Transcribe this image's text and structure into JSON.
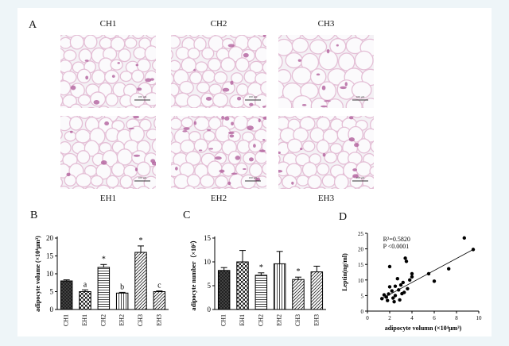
{
  "panel_letters": [
    "A",
    "B",
    "C",
    "D"
  ],
  "micrographs": {
    "top_labels": [
      "CH1",
      "CH2",
      "CH3"
    ],
    "bottom_labels": [
      "EH1",
      "EH2",
      "EH3"
    ],
    "scale_bar_text": "100 μm",
    "stain_colors": {
      "membrane": "#e4bfd6",
      "nucleus": "#b1609c",
      "background": "#f4f1f5",
      "cell": "#fbfafc"
    }
  },
  "chart_data": [
    {
      "type": "bar",
      "panel": "B",
      "categories": [
        "CH1",
        "EH1",
        "CH2",
        "EH2",
        "CH3",
        "EH3"
      ],
      "values": [
        8.0,
        5.0,
        11.8,
        4.6,
        16.0,
        5.0
      ],
      "errors": [
        0.3,
        0.5,
        0.8,
        0.2,
        1.8,
        0.2
      ],
      "annotations": [
        "",
        "a",
        "*",
        "b",
        "*",
        "c"
      ],
      "ylabel": "adipocyte volume (×10⁴μm³)",
      "ylim": [
        0,
        20
      ],
      "yticks": [
        0,
        5,
        10,
        15,
        20
      ],
      "patterns": [
        "dark-crosshatch",
        "checker",
        "horizontal",
        "vertical",
        "diagonal",
        "diagonal"
      ],
      "grid": false
    },
    {
      "type": "bar",
      "panel": "C",
      "categories": [
        "CH1",
        "EH1",
        "CH2",
        "EH2",
        "CH3",
        "EH3"
      ],
      "values": [
        8.2,
        10.0,
        7.2,
        9.6,
        6.3,
        7.9
      ],
      "errors": [
        0.6,
        2.4,
        0.5,
        2.6,
        0.5,
        1.2
      ],
      "annotations": [
        "",
        "",
        "*",
        "",
        "*",
        ""
      ],
      "ylabel": "adipocyte number（×10²）",
      "ylim": [
        0,
        15
      ],
      "yticks": [
        0,
        5,
        10,
        15
      ],
      "patterns": [
        "dark-crosshatch",
        "checker",
        "horizontal",
        "vertical",
        "diagonal",
        "diagonal"
      ],
      "grid": false
    },
    {
      "type": "scatter",
      "panel": "D",
      "xlabel": "adipocyte volumn (×10⁴μm³)",
      "ylabel": "Leptin(ng/ml)",
      "xlim": [
        0,
        10
      ],
      "ylim": [
        0,
        25
      ],
      "xticks": [
        0,
        2,
        4,
        6,
        8,
        10
      ],
      "yticks": [
        0,
        5,
        10,
        15,
        20,
        25
      ],
      "annotation_lines": [
        "R²=0.5820",
        "P <0.0001"
      ],
      "trend_line": {
        "x": [
          1.2,
          9.5
        ],
        "y": [
          3.8,
          19.8
        ]
      },
      "points": [
        {
          "x": 1.3,
          "y": 4.0
        },
        {
          "x": 1.5,
          "y": 5.2
        },
        {
          "x": 1.7,
          "y": 4.5
        },
        {
          "x": 1.8,
          "y": 3.4
        },
        {
          "x": 1.9,
          "y": 5.5
        },
        {
          "x": 2.0,
          "y": 14.3
        },
        {
          "x": 2.0,
          "y": 7.8
        },
        {
          "x": 2.2,
          "y": 6.5
        },
        {
          "x": 2.3,
          "y": 4.2
        },
        {
          "x": 2.4,
          "y": 3.0
        },
        {
          "x": 2.5,
          "y": 8.0
        },
        {
          "x": 2.5,
          "y": 5.0
        },
        {
          "x": 2.7,
          "y": 10.4
        },
        {
          "x": 2.8,
          "y": 6.8
        },
        {
          "x": 2.9,
          "y": 3.6
        },
        {
          "x": 3.0,
          "y": 8.4
        },
        {
          "x": 3.1,
          "y": 5.6
        },
        {
          "x": 3.2,
          "y": 9.2
        },
        {
          "x": 3.3,
          "y": 6.0
        },
        {
          "x": 3.4,
          "y": 17.0
        },
        {
          "x": 3.5,
          "y": 16.0
        },
        {
          "x": 3.6,
          "y": 7.2
        },
        {
          "x": 3.8,
          "y": 10.0
        },
        {
          "x": 4.0,
          "y": 12.0
        },
        {
          "x": 4.0,
          "y": 11.0
        },
        {
          "x": 5.5,
          "y": 12.0
        },
        {
          "x": 6.0,
          "y": 9.6
        },
        {
          "x": 7.3,
          "y": 13.6
        },
        {
          "x": 8.7,
          "y": 23.5
        },
        {
          "x": 9.5,
          "y": 19.8
        }
      ]
    }
  ]
}
